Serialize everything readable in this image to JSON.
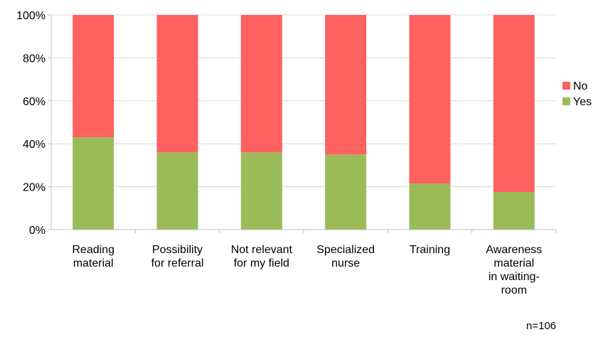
{
  "chart_data": {
    "type": "bar",
    "stacked": true,
    "percent": true,
    "categories": [
      [
        "Reading",
        "material"
      ],
      [
        "Possibility",
        "for referral"
      ],
      [
        "Not relevant",
        "for my field"
      ],
      [
        "Specialized",
        "nurse"
      ],
      [
        "Training"
      ],
      [
        "Awareness",
        "material",
        "in waiting-",
        "room"
      ]
    ],
    "series": [
      {
        "name": "Yes",
        "color": "#9bbb59",
        "values": [
          43,
          36,
          36,
          35,
          21.5,
          17.5
        ]
      },
      {
        "name": "No",
        "color": "#ff6161",
        "values": [
          57,
          64,
          64,
          65,
          78.5,
          82.5
        ]
      }
    ],
    "ylim": [
      0,
      100
    ],
    "yticks": [
      "0%",
      "20%",
      "40%",
      "60%",
      "80%",
      "100%"
    ],
    "grid": true,
    "legend": "right",
    "legend_order": [
      "No",
      "Yes"
    ]
  },
  "note": "n=106"
}
